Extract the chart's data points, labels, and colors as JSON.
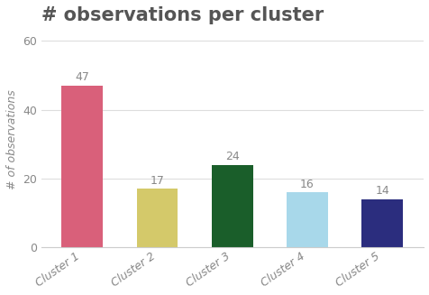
{
  "title": "# observations per cluster",
  "categories": [
    "Cluster 1",
    "Cluster 2",
    "Cluster 3",
    "Cluster 4",
    "Cluster 5"
  ],
  "values": [
    47,
    17,
    24,
    16,
    14
  ],
  "bar_colors": [
    "#d9607a",
    "#d4c96a",
    "#1a5e2a",
    "#a8d8ea",
    "#2b2d7e"
  ],
  "ylabel": "# of observations",
  "ylim": [
    0,
    63
  ],
  "yticks": [
    0,
    20,
    40,
    60
  ],
  "background_color": "#ffffff",
  "plot_bg_color": "#ffffff",
  "title_fontsize": 15,
  "label_fontsize": 9,
  "tick_fontsize": 9,
  "annotation_fontsize": 9,
  "bar_width": 0.55,
  "grid_color": "#dddddd",
  "text_color": "#888888",
  "spine_color": "#cccccc"
}
